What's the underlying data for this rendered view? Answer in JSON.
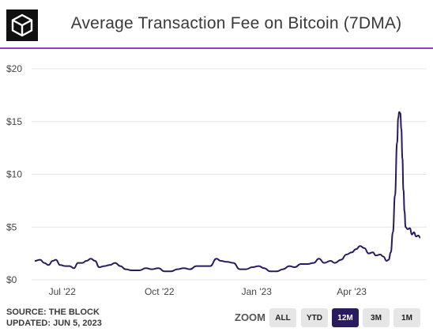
{
  "header": {
    "title": "Average Transaction Fee on Bitcoin (7DMA)"
  },
  "footer": {
    "source": "SOURCE: THE BLOCK",
    "updated": "UPDATED: JUN 5, 2023"
  },
  "zoom": {
    "label": "ZOOM",
    "buttons": [
      "ALL",
      "YTD",
      "12M",
      "3M",
      "1M"
    ],
    "selected": "12M"
  },
  "colors": {
    "accent_rule": "#8e3bc9",
    "line": "#2a1a5e",
    "grid": "#e6e6e6",
    "active_button": "#2a1a5e"
  },
  "chart_data": {
    "type": "line",
    "title": "Average Transaction Fee on Bitcoin (7DMA)",
    "xlabel": "",
    "ylabel": "",
    "ylim": [
      0,
      20
    ],
    "yticks": [
      0,
      5,
      10,
      15,
      20
    ],
    "ytick_labels": [
      "$0",
      "$5",
      "$10",
      "$15",
      "$20"
    ],
    "xticks": [
      {
        "date": "2022-07-01",
        "label": "Jul '22"
      },
      {
        "date": "2022-10-01",
        "label": "Oct '22"
      },
      {
        "date": "2023-01-01",
        "label": "Jan '23"
      },
      {
        "date": "2023-04-01",
        "label": "Apr '23"
      }
    ],
    "xlim": [
      "2022-06-05",
      "2023-06-05"
    ],
    "grid": "horizontal",
    "series": [
      {
        "values": [
          [
            "2022-06-05",
            1.8
          ],
          [
            "2022-06-10",
            1.9
          ],
          [
            "2022-06-14",
            1.6
          ],
          [
            "2022-06-18",
            1.4
          ],
          [
            "2022-06-22",
            1.8
          ],
          [
            "2022-06-25",
            1.9
          ],
          [
            "2022-06-29",
            1.4
          ],
          [
            "2022-07-04",
            1.3
          ],
          [
            "2022-07-08",
            1.3
          ],
          [
            "2022-07-12",
            1.1
          ],
          [
            "2022-07-16",
            1.6
          ],
          [
            "2022-07-20",
            1.6
          ],
          [
            "2022-07-24",
            1.8
          ],
          [
            "2022-07-28",
            2.0
          ],
          [
            "2022-08-01",
            1.8
          ],
          [
            "2022-08-05",
            1.2
          ],
          [
            "2022-08-10",
            1.3
          ],
          [
            "2022-08-15",
            1.4
          ],
          [
            "2022-08-20",
            1.6
          ],
          [
            "2022-08-25",
            1.3
          ],
          [
            "2022-08-30",
            1.0
          ],
          [
            "2022-09-05",
            0.9
          ],
          [
            "2022-09-12",
            0.9
          ],
          [
            "2022-09-18",
            1.1
          ],
          [
            "2022-09-24",
            1.0
          ],
          [
            "2022-09-30",
            1.1
          ],
          [
            "2022-10-06",
            0.8
          ],
          [
            "2022-10-12",
            0.8
          ],
          [
            "2022-10-18",
            1.0
          ],
          [
            "2022-10-24",
            1.1
          ],
          [
            "2022-10-30",
            1.0
          ],
          [
            "2022-11-05",
            1.3
          ],
          [
            "2022-11-12",
            1.3
          ],
          [
            "2022-11-18",
            1.3
          ],
          [
            "2022-11-24",
            2.0
          ],
          [
            "2022-11-28",
            1.8
          ],
          [
            "2022-12-04",
            1.7
          ],
          [
            "2022-12-10",
            1.6
          ],
          [
            "2022-12-16",
            1.0
          ],
          [
            "2022-12-22",
            1.0
          ],
          [
            "2022-12-28",
            1.2
          ],
          [
            "2023-01-03",
            1.3
          ],
          [
            "2023-01-08",
            1.1
          ],
          [
            "2023-01-14",
            0.8
          ],
          [
            "2023-01-20",
            0.8
          ],
          [
            "2023-01-26",
            1.0
          ],
          [
            "2023-02-01",
            1.3
          ],
          [
            "2023-02-06",
            1.2
          ],
          [
            "2023-02-12",
            1.5
          ],
          [
            "2023-02-18",
            1.5
          ],
          [
            "2023-02-24",
            1.6
          ],
          [
            "2023-03-01",
            2.0
          ],
          [
            "2023-03-06",
            1.6
          ],
          [
            "2023-03-12",
            1.8
          ],
          [
            "2023-03-16",
            1.6
          ],
          [
            "2023-03-22",
            1.9
          ],
          [
            "2023-03-27",
            2.4
          ],
          [
            "2023-04-01",
            2.6
          ],
          [
            "2023-04-05",
            2.9
          ],
          [
            "2023-04-09",
            3.2
          ],
          [
            "2023-04-13",
            3.0
          ],
          [
            "2023-04-17",
            2.5
          ],
          [
            "2023-04-21",
            2.6
          ],
          [
            "2023-04-24",
            2.3
          ],
          [
            "2023-04-28",
            2.4
          ],
          [
            "2023-05-01",
            2.2
          ],
          [
            "2023-05-04",
            1.8
          ],
          [
            "2023-05-06",
            1.9
          ],
          [
            "2023-05-08",
            2.6
          ],
          [
            "2023-05-10",
            4.5
          ],
          [
            "2023-05-12",
            8.0
          ],
          [
            "2023-05-14",
            13.0
          ],
          [
            "2023-05-15",
            15.3
          ],
          [
            "2023-05-16",
            15.9
          ],
          [
            "2023-05-17",
            15.8
          ],
          [
            "2023-05-18",
            14.3
          ],
          [
            "2023-05-19",
            11.5
          ],
          [
            "2023-05-20",
            8.5
          ],
          [
            "2023-05-21",
            6.5
          ],
          [
            "2023-05-22",
            5.0
          ],
          [
            "2023-05-24",
            4.8
          ],
          [
            "2023-05-26",
            4.9
          ],
          [
            "2023-05-28",
            4.3
          ],
          [
            "2023-05-30",
            4.5
          ],
          [
            "2023-06-01",
            4.1
          ],
          [
            "2023-06-03",
            4.2
          ],
          [
            "2023-06-05",
            4.0
          ]
        ]
      }
    ]
  }
}
